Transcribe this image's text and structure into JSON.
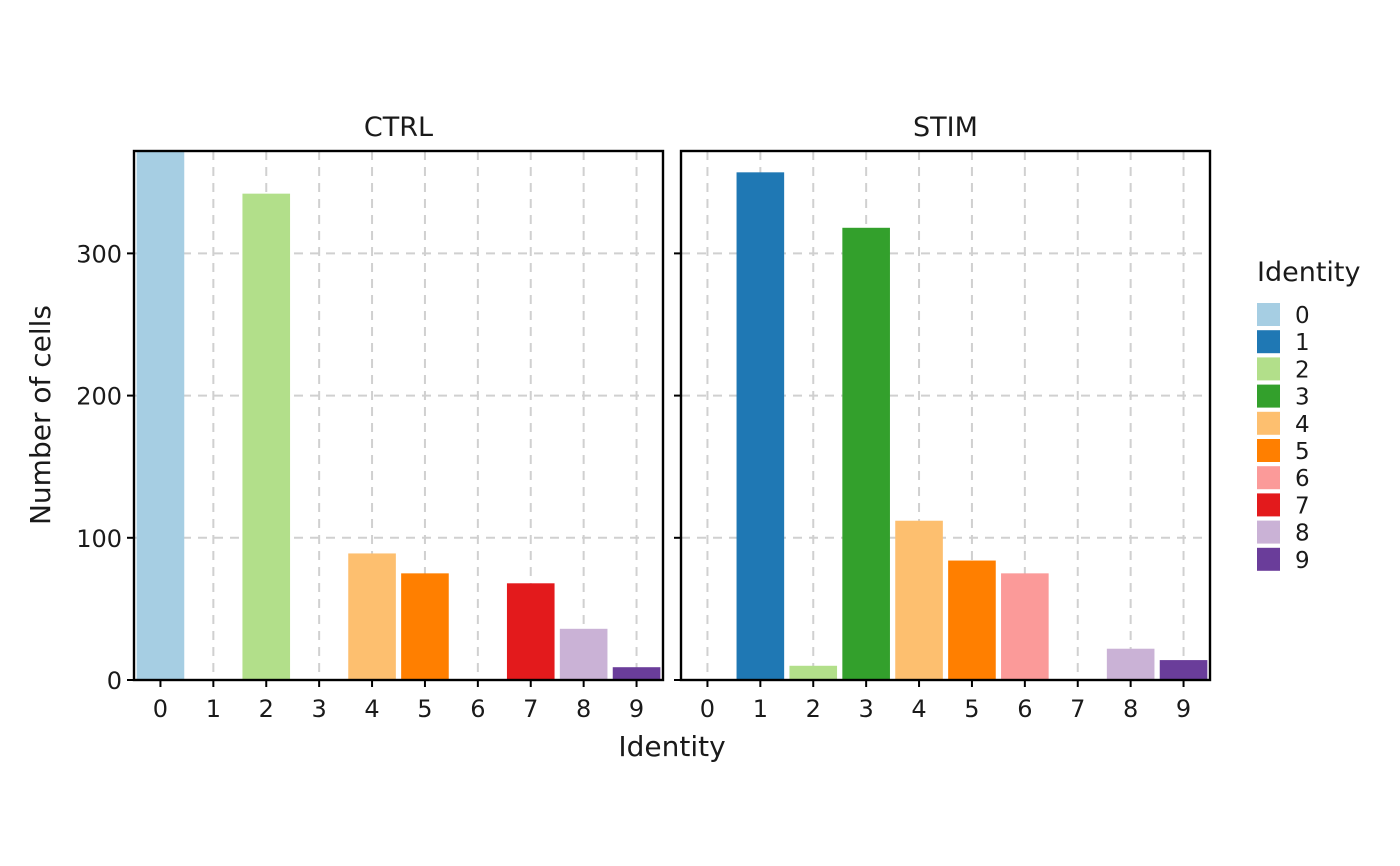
{
  "chart_data": {
    "type": "bar",
    "categories": [
      "0",
      "1",
      "2",
      "3",
      "4",
      "5",
      "6",
      "7",
      "8",
      "9"
    ],
    "facets": [
      {
        "name": "CTRL",
        "values": [
          400,
          0,
          342,
          0,
          89,
          75,
          0,
          68,
          36,
          9
        ]
      },
      {
        "name": "STIM",
        "values": [
          0,
          357,
          10,
          318,
          112,
          84,
          75,
          0,
          22,
          14
        ]
      }
    ],
    "xlabel": "Identity",
    "ylabel": "Number of cells",
    "yticks": [
      0,
      100,
      200,
      300
    ],
    "ylim": [
      0,
      372
    ],
    "grid": true,
    "legend": {
      "title": "Identity",
      "position": "right",
      "entries": [
        "0",
        "1",
        "2",
        "3",
        "4",
        "5",
        "6",
        "7",
        "8",
        "9"
      ]
    },
    "colors": [
      "#A6CEE3",
      "#1F78B4",
      "#B2DF8A",
      "#33A02C",
      "#FDBF6F",
      "#FF7F00",
      "#FB9A99",
      "#E31A1C",
      "#CAB2D6",
      "#6A3D9A"
    ]
  }
}
